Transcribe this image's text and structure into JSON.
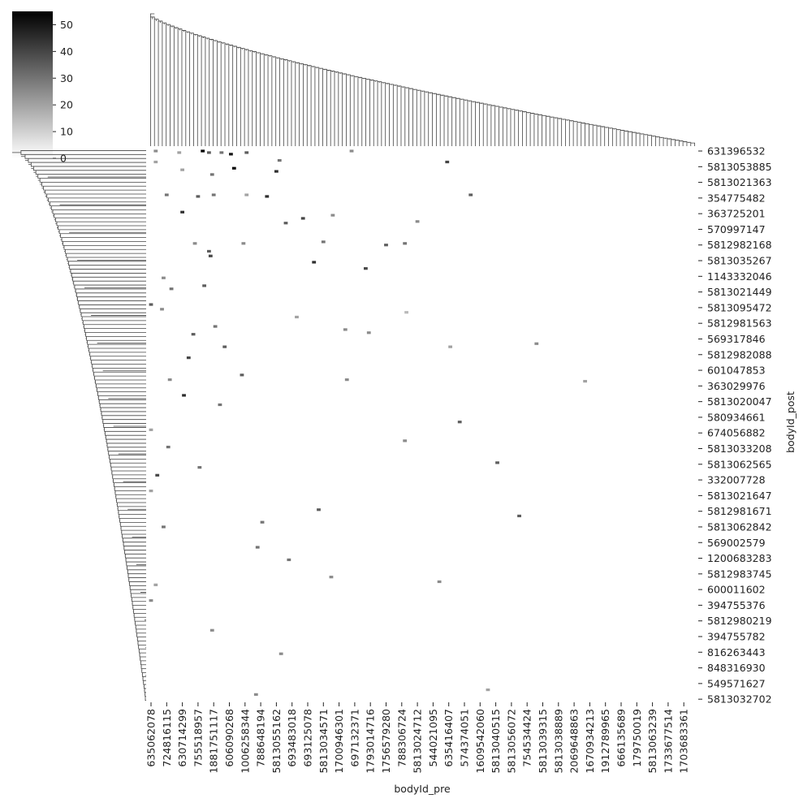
{
  "chart_data": {
    "type": "clustermap",
    "x_label": "bodyId_pre",
    "y_label": "bodyId_post",
    "col_labels": [
      "635062078",
      "724816115",
      "630714299",
      "755518957",
      "1881751117",
      "606090268",
      "1006258344",
      "788648194",
      "5813055162",
      "693483018",
      "693125078",
      "5813034571",
      "1700946301",
      "697132371",
      "1793014716",
      "1756579280",
      "788306724",
      "5813024712",
      "544021095",
      "635416407",
      "574374051",
      "1609542060",
      "5813040515",
      "5813056072",
      "754534424",
      "5813039315",
      "5813038889",
      "2069648863",
      "1670934213",
      "1912789965",
      "666135689",
      "179750019",
      "5813063239",
      "1733677514",
      "1703683361"
    ],
    "row_labels": [
      "631396532",
      "5813053885",
      "5813021363",
      "354775482",
      "363725201",
      "570997147",
      "5812982168",
      "5813035267",
      "1143332046",
      "5813021449",
      "5813095472",
      "5812981563",
      "569317846",
      "5812982088",
      "601047853",
      "363029976",
      "5813020047",
      "580934661",
      "674056882",
      "5813033208",
      "5813062565",
      "332007728",
      "5813021647",
      "5812981671",
      "5813062842",
      "569002579",
      "1200683283",
      "5812983745",
      "600011602",
      "394755376",
      "5812980219",
      "394755782",
      "816263443",
      "848316930",
      "549571627",
      "5813032702"
    ],
    "x": [
      3.3,
      3.7,
      4.5,
      5.1,
      0.3,
      1.8,
      6.1,
      12.8,
      8.2,
      5.3,
      8.0,
      2.0,
      3.9,
      18.9,
      0.3,
      1.0,
      2.0,
      3.0,
      4.0,
      6.1,
      7.4,
      9.7,
      8.6,
      11.6,
      20.4,
      16.2,
      17.0,
      15.0,
      11.0,
      10.4,
      13.7,
      3.8,
      3.7,
      0.8,
      1.3,
      3.4,
      0,
      0.7,
      2.7,
      4.1,
      4.7,
      2.4,
      5.8,
      2.1,
      4.4,
      1.2,
      0,
      1.1,
      3.1,
      0.4,
      0,
      0.8,
      7.1,
      6.8,
      8.8,
      11.5,
      10.7,
      13.9,
      22.1,
      23.5,
      18.4,
      19.7,
      0,
      8.3,
      21.5,
      6.7,
      3.9,
      0.3,
      16.2,
      12.4,
      9.3,
      24.6,
      27.7,
      19.1,
      12.5,
      16.3,
      5.9,
      2.8
    ],
    "y": [
      0,
      0.1,
      0.1,
      0.2,
      0,
      0.1,
      0.1,
      0,
      0.6,
      1.1,
      1.3,
      1.2,
      1.5,
      0.7,
      0.7,
      2.8,
      3.9,
      2.9,
      2.8,
      2.8,
      2.9,
      4.3,
      4.6,
      4.1,
      2.8,
      5.9,
      4.5,
      6.0,
      5.8,
      7.1,
      7.5,
      6.7,
      6.4,
      8.1,
      8.8,
      8.6,
      9.8,
      10.1,
      11.7,
      11.2,
      12.5,
      13.2,
      14.3,
      15.6,
      16.2,
      14.6,
      17.8,
      18.9,
      20.2,
      20.7,
      21.7,
      24.0,
      23.7,
      25.3,
      26.1,
      27.2,
      22.9,
      11.6,
      19.9,
      23.3,
      27.5,
      17.3,
      28.7,
      32.1,
      34.4,
      34.7,
      30.6,
      27.7,
      18.5,
      11.4,
      10.6,
      12.3,
      14.7,
      12.5,
      14.6,
      10.3,
      5.9,
      5.9
    ],
    "values": [
      55,
      35,
      30,
      50,
      25,
      20,
      35,
      25,
      30,
      55,
      45,
      20,
      30,
      40,
      20,
      30,
      45,
      35,
      30,
      20,
      45,
      40,
      35,
      25,
      35,
      30,
      25,
      35,
      30,
      45,
      40,
      40,
      35,
      25,
      30,
      35,
      35,
      25,
      35,
      30,
      35,
      40,
      35,
      45,
      30,
      25,
      20,
      30,
      30,
      40,
      20,
      30,
      30,
      30,
      30,
      25,
      35,
      25,
      35,
      35,
      25,
      35,
      25,
      25,
      20,
      25,
      25,
      20,
      25,
      25,
      20,
      25,
      20,
      20,
      25,
      15,
      25,
      25
    ],
    "vlim": [
      0,
      55
    ],
    "colorbar_ticks": [
      0,
      10,
      20,
      30,
      40,
      50
    ],
    "cmap": [
      "#ffffff",
      "#000000"
    ]
  }
}
